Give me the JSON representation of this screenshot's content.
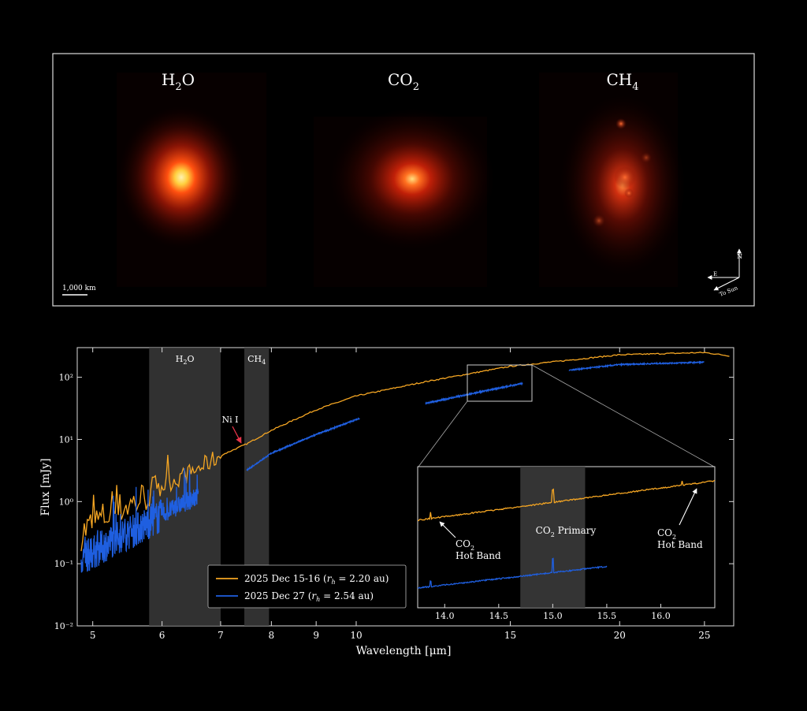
{
  "colors": {
    "background": "#000000",
    "orange_series": "#f5a623",
    "blue_series": "#1f5fe0",
    "band_shade": "#3a3a3a",
    "ni_annotation": "#e8344a",
    "frame": "#ffffff",
    "image_glow": "#ff3a10"
  },
  "images": {
    "panels": [
      {
        "label_main": "H",
        "label_sub": "2",
        "label_tail": "O"
      },
      {
        "label_main": "CO",
        "label_sub": "2",
        "label_tail": ""
      },
      {
        "label_main": "CH",
        "label_sub": "4",
        "label_tail": ""
      }
    ],
    "scale_bar": "1,000 km",
    "compass": {
      "north": "N",
      "east": "E",
      "sun": "To Sun"
    }
  },
  "chart_data": [
    {
      "type": "line",
      "xlabel": "Wavelength [μm]",
      "ylabel": "Flux [mJy]",
      "xscale": "log",
      "yscale": "log",
      "xlim": [
        4.8,
        27
      ],
      "ylim": [
        0.01,
        300
      ],
      "x_ticks": [
        "5",
        "6",
        "7",
        "8",
        "9",
        "10",
        "15",
        "20",
        "25"
      ],
      "y_ticks": [
        "10⁻²",
        "10⁻¹",
        "10⁰",
        "10¹",
        "10²"
      ],
      "shaded_bands": [
        {
          "label_main": "H",
          "label_sub": "2",
          "label_tail": "O",
          "x_range": [
            5.8,
            7.0
          ]
        },
        {
          "label_main": "CH",
          "label_sub": "4",
          "label_tail": "",
          "x_range": [
            7.45,
            7.95
          ]
        }
      ],
      "annotation": {
        "text": "Ni I",
        "x": 7.6,
        "y": 9
      },
      "legend": {
        "placement": "bottom-center",
        "entries": [
          {
            "main": "2025 Dec 15-16 (",
            "var": "r",
            "sub": "h",
            "rest": " = 2.20 au)"
          },
          {
            "main": "2025 Dec 27 (",
            "var": "r",
            "sub": "h",
            "rest": " = 2.54 au)"
          }
        ]
      },
      "series": [
        {
          "x": [
            4.85,
            5.0,
            5.3,
            5.6,
            6.0,
            6.5,
            7.0,
            7.5,
            8.0,
            9.0,
            10.0,
            12.0,
            15.0,
            20.0,
            25.0,
            26.8
          ],
          "y": [
            0.3,
            0.45,
            0.7,
            1.0,
            1.8,
            3.0,
            5.5,
            8.5,
            14,
            30,
            50,
            85,
            150,
            230,
            250,
            220
          ]
        },
        {
          "segments": [
            {
              "x": [
                4.85,
                5.0,
                5.3,
                5.6,
                6.0,
                6.3,
                6.6
              ],
              "y": [
                0.12,
                0.15,
                0.25,
                0.35,
                0.6,
                0.9,
                1.2
              ]
            },
            {
              "x": [
                7.5,
                8.0,
                9.0,
                10.1
              ],
              "y": [
                3.2,
                6,
                12,
                22
              ]
            },
            {
              "x": [
                12.0,
                14.0,
                15.5
              ],
              "y": [
                38,
                60,
                80
              ]
            },
            {
              "x": [
                17.5,
                20.0,
                25.0
              ],
              "y": [
                130,
                160,
                175
              ]
            }
          ]
        }
      ]
    },
    {
      "type": "line",
      "xlim": [
        13.75,
        16.5
      ],
      "x_ticks": [
        "14.0",
        "14.5",
        "15.0",
        "15.5",
        "16.0"
      ],
      "shaded_bands": [
        {
          "x_range": [
            14.7,
            15.3
          ]
        }
      ],
      "band_label": {
        "main": "CO",
        "sub": "2",
        "tail": " Primary"
      },
      "annotations": [
        {
          "line1_main": "CO",
          "line1_sub": "2",
          "line2": "Hot Band",
          "x": 13.87
        },
        {
          "line1_main": "CO",
          "line1_sub": "2",
          "line2": "Hot Band",
          "x": 16.2
        }
      ]
    }
  ]
}
